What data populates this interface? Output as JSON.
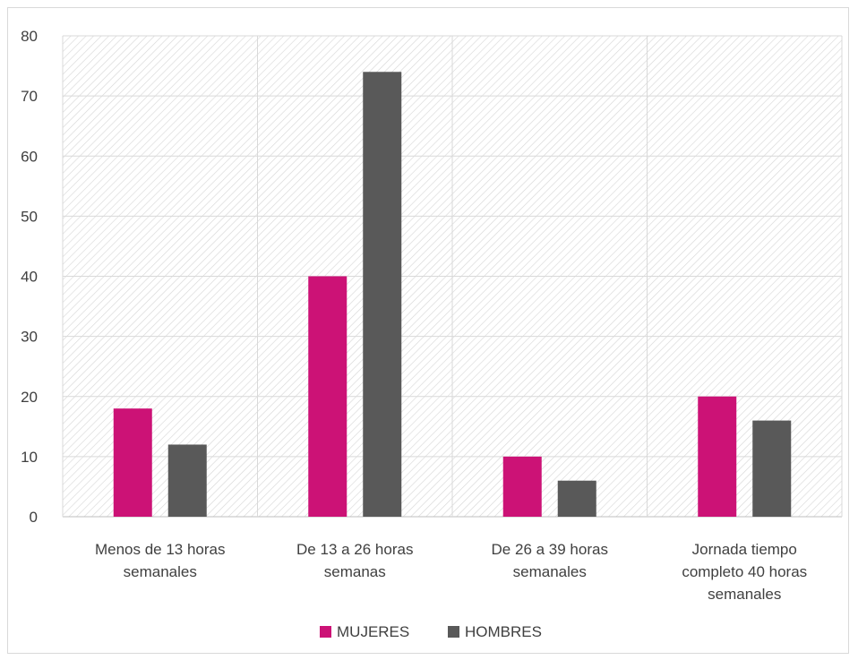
{
  "chart_data": {
    "type": "bar",
    "categories": [
      [
        "Menos de 13 horas",
        "semanales"
      ],
      [
        "De 13 a 26 horas",
        "semanas"
      ],
      [
        "De 26 a 39 horas",
        "semanales"
      ],
      [
        "Jornada tiempo",
        "completo 40 horas",
        "semanales"
      ]
    ],
    "series": [
      {
        "name": "MUJERES",
        "color": "#cc1276",
        "values": [
          18,
          40,
          10,
          20
        ]
      },
      {
        "name": "HOMBRES",
        "color": "#595959",
        "values": [
          12,
          74,
          6,
          16
        ]
      }
    ],
    "title": "",
    "xlabel": "",
    "ylabel": "",
    "ylim": [
      0,
      80
    ],
    "yticks": [
      0,
      10,
      20,
      30,
      40,
      50,
      60,
      70,
      80
    ],
    "grid": true,
    "legend": "bottom-center"
  }
}
